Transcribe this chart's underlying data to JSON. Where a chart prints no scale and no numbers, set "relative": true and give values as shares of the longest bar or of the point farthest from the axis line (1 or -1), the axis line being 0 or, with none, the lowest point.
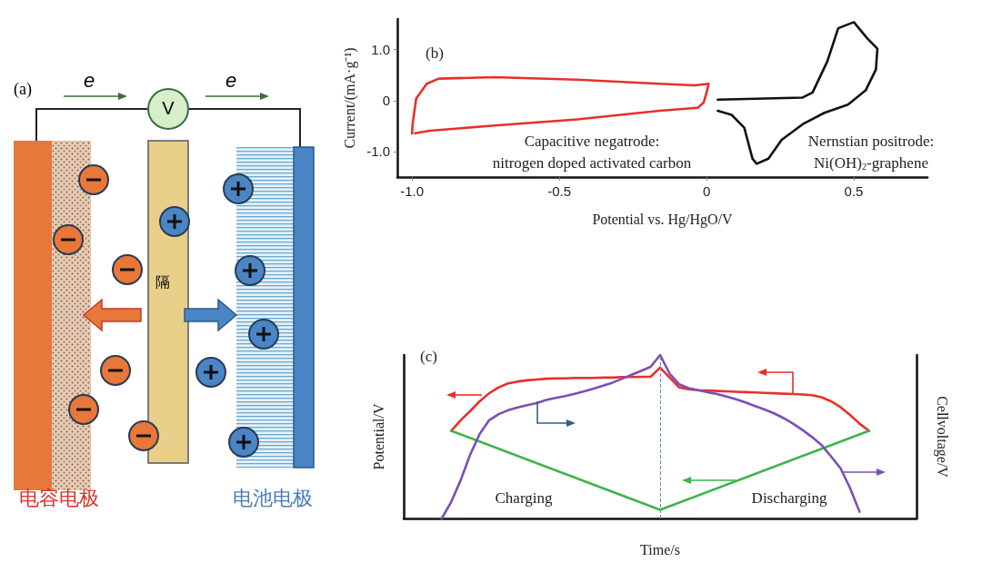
{
  "chart_data": [
    {
      "type": "other",
      "annotations": [
        "(a)",
        "e",
        "e",
        "V",
        "隔",
        "电容电极",
        "电池电极"
      ]
    },
    {
      "type": "line",
      "xlabel": "Potential vs. Hg/HgO/V",
      "ylabel": "Current/(mA·g⁻¹)",
      "xlim": [
        -1.05,
        0.75
      ],
      "ylim": [
        -1.5,
        1.6
      ],
      "xticks": [
        {
          "value": -1,
          "label": "-1.0"
        },
        -0.5,
        0,
        0.5
      ],
      "yticks": [
        {
          "value": -1,
          "label": "-1.0"
        },
        0,
        {
          "value": 1,
          "label": "1.0"
        }
      ],
      "series": [
        {
          "color": "#e8302a",
          "x": [
            -1.0,
            -0.998,
            -0.986,
            -0.95,
            -0.91,
            -0.72,
            -0.44,
            -0.16,
            -0.04,
            0.007,
            0.0,
            -0.01,
            -0.03,
            -0.16,
            -0.44,
            -0.72,
            -0.94,
            -0.99
          ],
          "values": [
            -0.65,
            -0.45,
            0.04,
            0.33,
            0.43,
            0.46,
            0.41,
            0.33,
            0.3,
            0.33,
            0.16,
            -0.04,
            -0.14,
            -0.2,
            -0.37,
            -0.49,
            -0.59,
            -0.64
          ]
        },
        {
          "color": "#111111",
          "x": [
            0.038,
            0.326,
            0.36,
            0.41,
            0.447,
            0.5,
            0.546,
            0.58,
            0.575,
            0.54,
            0.48,
            0.4,
            0.33,
            0.255,
            0.21,
            0.17,
            0.156,
            0.128,
            0.085,
            0.038
          ],
          "values": [
            0.02,
            0.06,
            0.16,
            0.77,
            1.42,
            1.54,
            1.22,
            1.02,
            0.61,
            0.2,
            -0.08,
            -0.24,
            -0.45,
            -0.77,
            -1.14,
            -1.24,
            -1.14,
            -0.53,
            -0.28,
            -0.2
          ]
        }
      ],
      "annotations": [
        "(b)",
        "Capacitive negatrode:\nnitrogen doped activated carbon",
        "Nernstian positrode:\nNi(OH)$_{2}$-graphene"
      ]
    },
    {
      "type": "line",
      "relative": true,
      "xlabel": "Time/s",
      "ylabel": "Potential/V",
      "y2label": "Cellvoltage/V",
      "categories": [
        null,
        null,
        null,
        null,
        null,
        null,
        null,
        null,
        null,
        null,
        null,
        null,
        null,
        null,
        null,
        null,
        null,
        null,
        null,
        null,
        null,
        null,
        null,
        null,
        null,
        null,
        null,
        null,
        null,
        null,
        null,
        null,
        null,
        null,
        null,
        null,
        null,
        null,
        null,
        null,
        null,
        null,
        null,
        null,
        null,
        null,
        null,
        null,
        null,
        null,
        null,
        null,
        null,
        null,
        null
      ],
      "series": [
        {
          "color": "#e8302a",
          "values": [
            null,
            null,
            null,
            null,
            null,
            0.536,
            0.601,
            0.657,
            0.717,
            0.766,
            0.802,
            0.826,
            0.838,
            0.845,
            0.85,
            0.855,
            0.857,
            0.857,
            0.86,
            0.86,
            0.86,
            0.862,
            0.862,
            0.865,
            0.865,
            0.867,
            0.867,
            0.923,
            0.862,
            0.802,
            0.79,
            0.785,
            0.783,
            0.78,
            0.778,
            0.775,
            0.773,
            0.771,
            0.768,
            0.766,
            0.763,
            0.761,
            0.758,
            0.754,
            0.742,
            0.717,
            0.681,
            0.633,
            0.58,
            0.536,
            null,
            null,
            null,
            null,
            null
          ]
        },
        {
          "color": "#3cb54a",
          "values": [
            null,
            null,
            null,
            null,
            null,
            0.536,
            null,
            null,
            null,
            null,
            null,
            null,
            null,
            null,
            null,
            null,
            null,
            null,
            null,
            null,
            null,
            null,
            null,
            null,
            null,
            null,
            null,
            0.053,
            null,
            null,
            null,
            null,
            null,
            null,
            null,
            null,
            null,
            null,
            null,
            null,
            null,
            null,
            null,
            null,
            null,
            null,
            null,
            null,
            null,
            0.536,
            null,
            null,
            null,
            null,
            null
          ]
        },
        {
          "color": "#7b4fb5",
          "values": [
            null,
            null,
            null,
            null,
            0,
            0.101,
            0.234,
            0.391,
            0.517,
            0.601,
            0.638,
            0.662,
            0.679,
            0.693,
            0.705,
            0.725,
            0.737,
            0.749,
            0.763,
            0.778,
            0.795,
            0.812,
            0.831,
            0.855,
            0.879,
            0.903,
            0.928,
            1,
            0.886,
            0.821,
            0.797,
            0.785,
            0.773,
            0.761,
            0.746,
            0.729,
            0.71,
            0.688,
            0.667,
            0.643,
            0.614,
            0.58,
            0.541,
            0.498,
            0.449,
            0.379,
            0.307,
            0.186,
            0.041,
            null,
            null,
            null,
            null,
            null,
            null
          ]
        }
      ],
      "annotations": [
        "(c)",
        "Charging",
        "Discharging"
      ]
    }
  ]
}
